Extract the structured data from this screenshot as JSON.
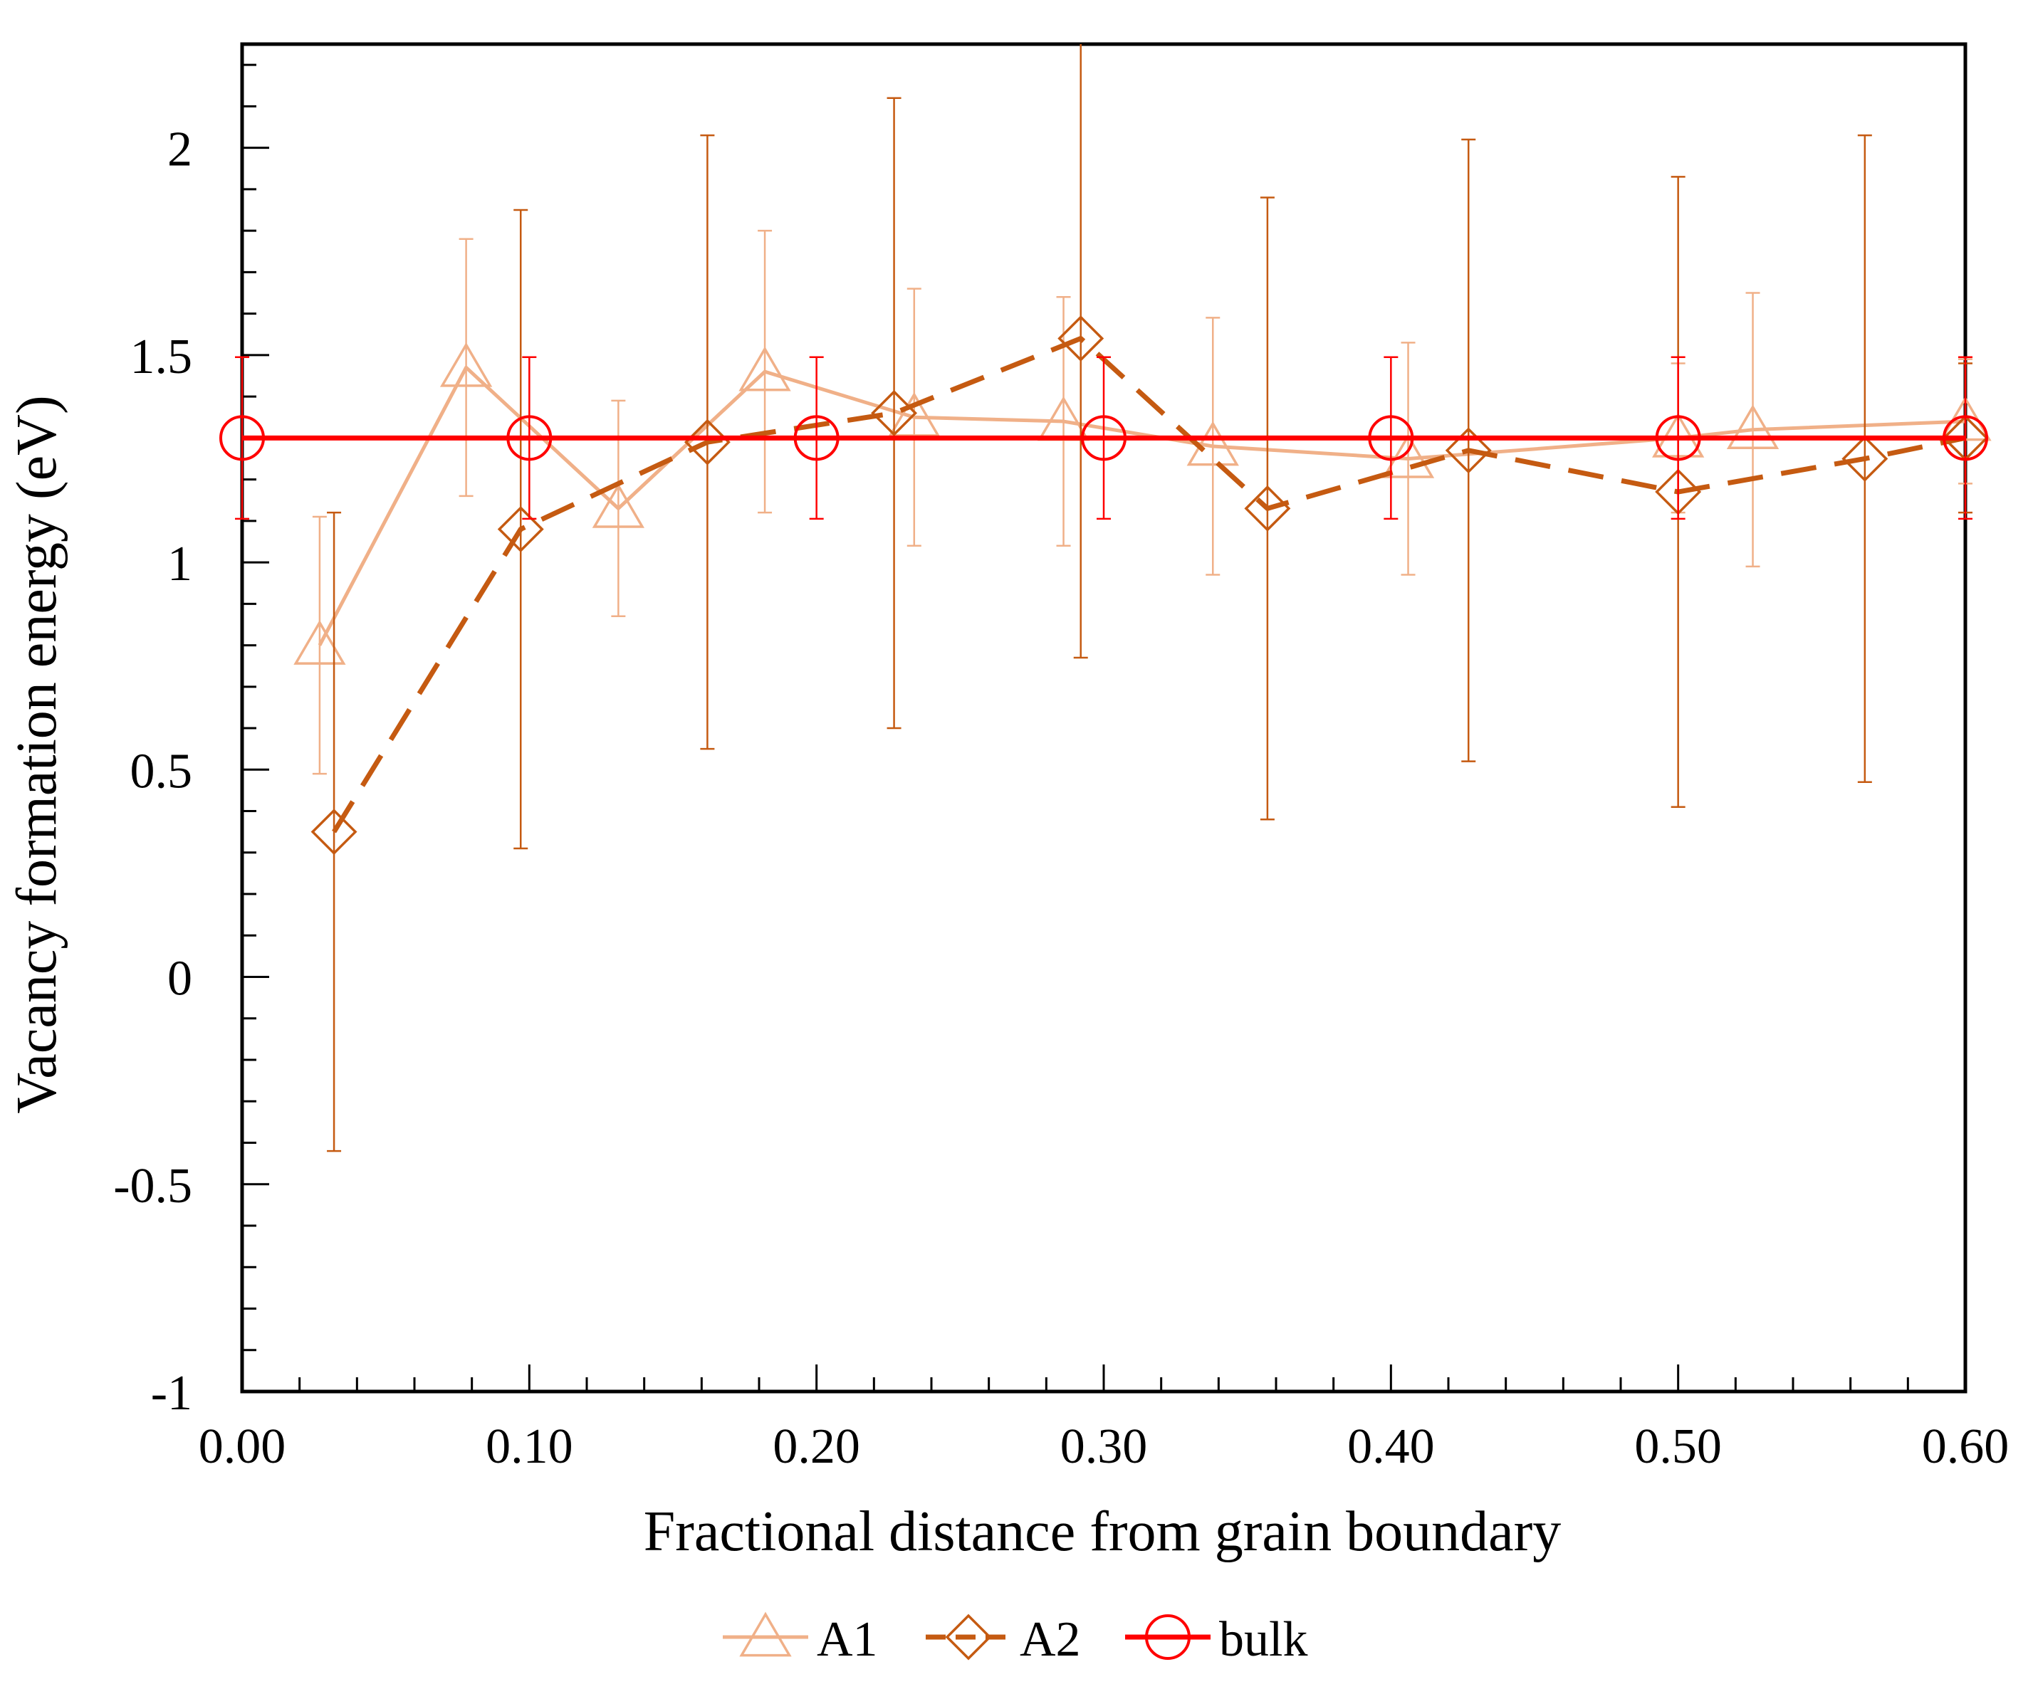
{
  "chart_data": {
    "type": "line",
    "xlabel": "Fractional distance from grain boundary",
    "ylabel": "Vacancy formation energy (eV)",
    "xlim": [
      0.0,
      0.6
    ],
    "ylim": [
      -1,
      2.25
    ],
    "xticks": [
      "0.00",
      "0.10",
      "0.20",
      "0.30",
      "0.40",
      "0.50",
      "0.60"
    ],
    "yticks": [
      "-1",
      "-0.5",
      "0",
      "0.5",
      "1",
      "1.5",
      "2"
    ],
    "grid": false,
    "legend_position": "bottom",
    "series": [
      {
        "name": "A1",
        "color": "#f0b088",
        "marker": "triangle",
        "line": "solid",
        "x": [
          0.027,
          0.078,
          0.131,
          0.182,
          0.234,
          0.286,
          0.338,
          0.406,
          0.5,
          0.526,
          0.6
        ],
        "y": [
          0.8,
          1.47,
          1.13,
          1.46,
          1.35,
          1.34,
          1.28,
          1.25,
          1.3,
          1.32,
          1.34
        ],
        "err": [
          0.31,
          0.31,
          0.26,
          0.34,
          0.31,
          0.3,
          0.31,
          0.28,
          0.18,
          0.33,
          0.15
        ]
      },
      {
        "name": "A2",
        "color": "#c55a11",
        "marker": "diamond",
        "line": "dashed",
        "x": [
          0.032,
          0.097,
          0.162,
          0.227,
          0.292,
          0.357,
          0.427,
          0.5,
          0.565,
          0.6
        ],
        "y": [
          0.35,
          1.08,
          1.29,
          1.36,
          1.54,
          1.13,
          1.27,
          1.17,
          1.25,
          1.3
        ],
        "err": [
          0.77,
          0.77,
          0.74,
          0.76,
          0.77,
          0.75,
          0.75,
          0.76,
          0.78,
          0.18
        ]
      },
      {
        "name": "bulk",
        "color": "#ff0000",
        "marker": "circle",
        "line": "solid",
        "x": [
          0.0,
          0.1,
          0.2,
          0.3,
          0.4,
          0.5,
          0.6
        ],
        "y": [
          1.3,
          1.3,
          1.3,
          1.3,
          1.3,
          1.3,
          1.3
        ],
        "err": [
          0.195,
          0.195,
          0.195,
          0.195,
          0.195,
          0.195,
          0.195
        ]
      }
    ]
  }
}
